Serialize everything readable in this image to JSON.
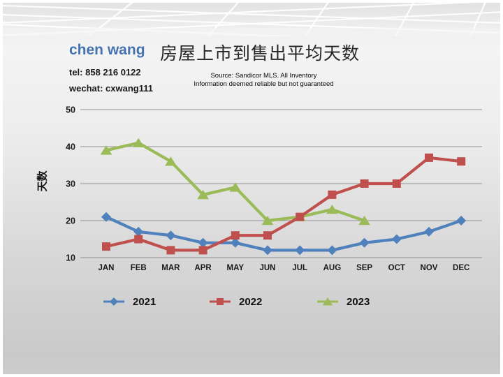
{
  "header": {
    "agent_name": "chen wang",
    "tel": "tel: 858 216 0122",
    "wechat": "wechat: cxwang111",
    "title": "房屋上市到售出平均天数",
    "source_line1": "Source: Sandicor MLS. All Inventory",
    "source_line2": "Information deemed reliable but not guaranteed"
  },
  "colors": {
    "agent_name": "#4573b0",
    "gridline": "#929292",
    "axis_text": "#1a1a1a",
    "series_2021": "#4F81BD",
    "series_2022": "#C0504D",
    "series_2023": "#9BBB59"
  },
  "chart_data": {
    "type": "line",
    "title": "房屋上市到售出平均天数",
    "xlabel": "",
    "ylabel": "天数",
    "categories": [
      "JAN",
      "FEB",
      "MAR",
      "APR",
      "MAY",
      "JUN",
      "JUL",
      "AUG",
      "SEP",
      "OCT",
      "NOV",
      "DEC"
    ],
    "series": [
      {
        "name": "2021",
        "marker": "diamond",
        "color": "#4F81BD",
        "values": [
          21,
          17,
          16,
          14,
          14,
          12,
          12,
          12,
          14,
          15,
          17,
          20
        ]
      },
      {
        "name": "2022",
        "marker": "square",
        "color": "#C0504D",
        "values": [
          13,
          15,
          12,
          12,
          16,
          16,
          21,
          27,
          30,
          30,
          37,
          36
        ]
      },
      {
        "name": "2023",
        "marker": "triangle",
        "color": "#9BBB59",
        "values": [
          39,
          41,
          36,
          27,
          29,
          20,
          21,
          23,
          20,
          null,
          null,
          null
        ]
      }
    ],
    "ylim": [
      10,
      50
    ],
    "yticks": [
      10,
      20,
      30,
      40,
      50
    ],
    "grid": true,
    "legend_position": "bottom",
    "draw_order": [
      0,
      2,
      1
    ]
  }
}
